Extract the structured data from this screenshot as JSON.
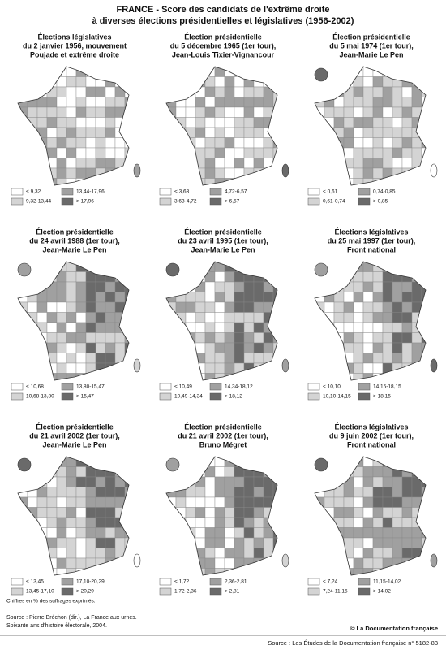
{
  "header": {
    "title": [
      "FRANCE -  Score des candidats de l'extrême droite",
      "à diverses élections présidentielles et législatives (1956-2002)"
    ]
  },
  "panels": [
    {
      "title": [
        "Élections législatives",
        "du 2 janvier 1956, mouvement",
        "Poujade et extrême droite"
      ],
      "legend": [
        "< 9,32",
        "9,32-13,44",
        "13,44-17,96",
        "> 17,96"
      ]
    },
    {
      "title": [
        "Élection présidentielle",
        "du 5 décembre 1965 (1er tour),",
        "Jean-Louis Tixier-Vignancour"
      ],
      "legend": [
        "< 3,63",
        "3,63-4,72",
        "4,72-6,57",
        "> 6,57"
      ]
    },
    {
      "title": [
        "Élection présidentielle",
        "du 5 mai 1974 (1er tour),",
        "Jean-Marie Le Pen"
      ],
      "legend": [
        "< 0,61",
        "0,61-0,74",
        "0,74-0,85",
        "> 0,85"
      ]
    },
    {
      "title": [
        "Élection présidentielle",
        "du 24 avril 1988 (1er tour),",
        "Jean-Marie Le Pen"
      ],
      "legend": [
        "< 10,68",
        "10,68-13,80",
        "13,80-15,47",
        "> 15,47"
      ]
    },
    {
      "title": [
        "Élection présidentielle",
        "du 23 avril 1995 (1er tour),",
        "Jean-Marie Le Pen"
      ],
      "legend": [
        "< 10,49",
        "10,49-14,34",
        "14,34-18,12",
        "> 18,12"
      ]
    },
    {
      "title": [
        "Élections législatives",
        "du 25 mai 1997 (1er tour),",
        "Front national"
      ],
      "legend": [
        "< 10,10",
        "10,10-14,15",
        "14,15-18,15",
        "> 18,15"
      ]
    },
    {
      "title": [
        "Élection présidentielle",
        "du 21 avril 2002 (1er tour),",
        "Jean-Marie Le Pen"
      ],
      "legend": [
        "< 13,45",
        "13,45-17,10",
        "17,10-20,29",
        "> 20,29"
      ]
    },
    {
      "title": [
        "Élection présidentielle",
        "du 21 avril 2002 (1er tour),",
        "Bruno Mégret"
      ],
      "legend": [
        "< 1,72",
        "1,72-2,36",
        "2,36-2,81",
        "> 2,81"
      ]
    },
    {
      "title": [
        "Élections législatives",
        "du 9 juin 2002 (1er tour),",
        "Front national"
      ],
      "legend": [
        "< 7,24",
        "7,24-11,15",
        "11,15-14,02",
        "> 14,02"
      ]
    }
  ],
  "footer": {
    "note": "Chiffres en % des suffrages exprimés.",
    "source": [
      "Source : Pierre Bréchon (dir.), La France aux urnes.",
      "Soixante ans d'histoire électorale, 2004."
    ],
    "copyright": "© La Documentation française",
    "reference": "Source : Les Études de la Documentation française n° 5182-83"
  }
}
